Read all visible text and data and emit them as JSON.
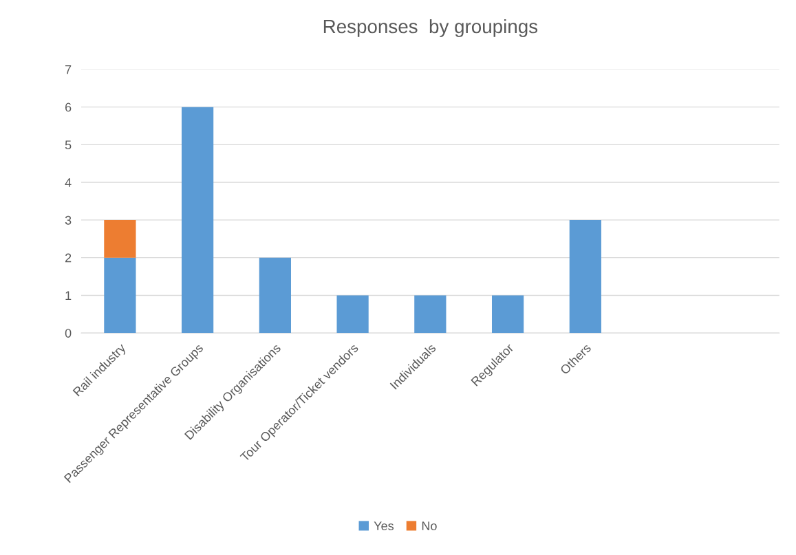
{
  "chart_data": {
    "type": "bar",
    "title": "Responses  by groupings",
    "stacked": true,
    "categories": [
      "Rail industry",
      "Passenger Representative Groups",
      "Disability Organisations",
      "Tour Operator/Ticket vendors",
      "Individuals",
      "Regulator",
      "Others",
      null,
      null
    ],
    "series": [
      {
        "name": "Yes",
        "color": "#5b9bd5",
        "values": [
          2,
          6,
          2,
          1,
          1,
          1,
          3,
          null,
          null
        ]
      },
      {
        "name": "No",
        "color": "#ed7d31",
        "values": [
          1,
          null,
          null,
          null,
          null,
          null,
          null,
          null,
          null
        ]
      }
    ],
    "ylim": [
      0,
      7
    ],
    "yticks": [
      0,
      1,
      2,
      3,
      4,
      5,
      6,
      7
    ],
    "grid": "y",
    "legend": "bottom"
  }
}
